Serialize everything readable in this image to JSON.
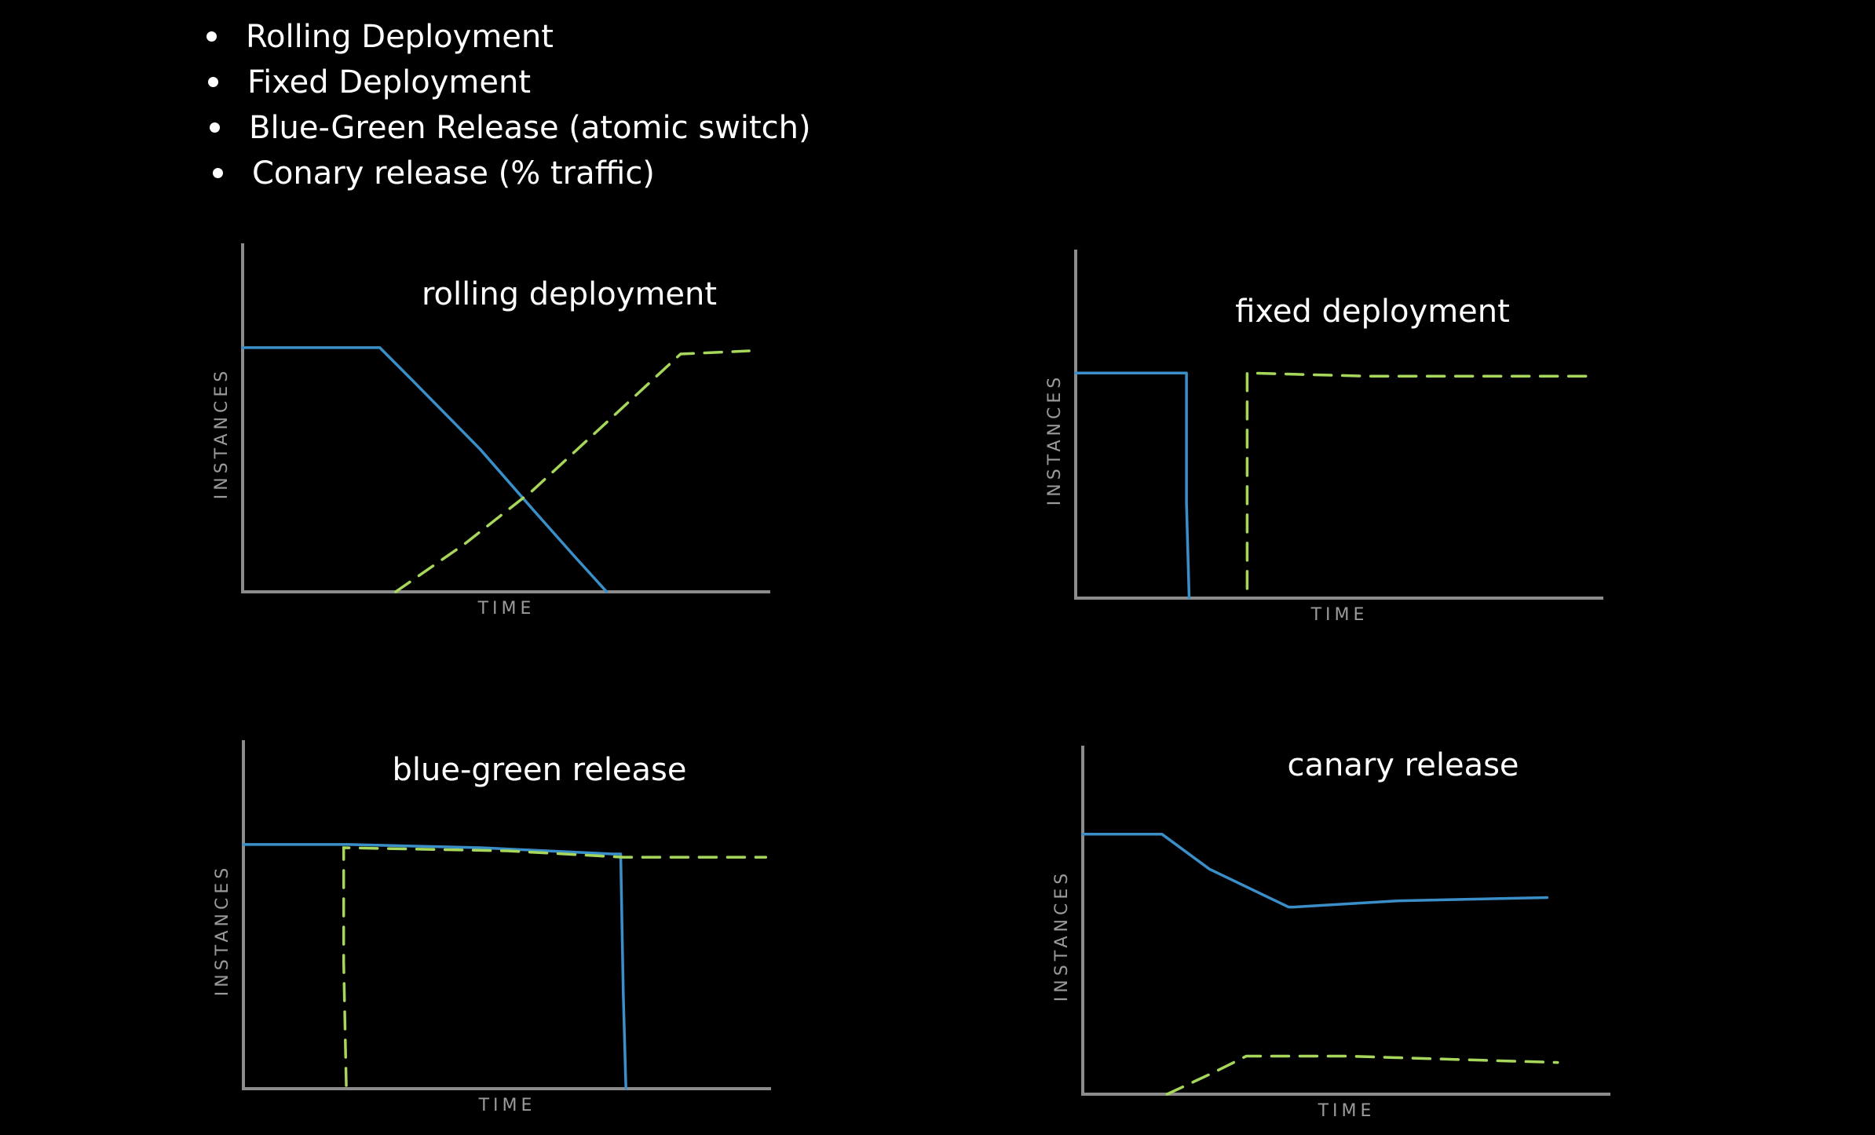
{
  "bullets": [
    "Rolling Deployment",
    "Fixed Deployment",
    "Blue-Green  Release  (atomic switch)",
    "Conary  release  (% traffic)"
  ],
  "colors": {
    "background": "#000000",
    "axis": "#8c8c8c",
    "old_version": "#3b8fc9",
    "new_version": "#a6d65a",
    "text": "#ffffff"
  },
  "chart_data": [
    {
      "type": "line",
      "title": "rolling deployment",
      "xlabel": "TIME",
      "ylabel": "INSTANCES",
      "grid": false,
      "xlim": [
        0,
        100
      ],
      "ylim": [
        0,
        100
      ],
      "series": [
        {
          "style": "solid",
          "color": "#3b8fc9",
          "points": [
            [
              0,
              77
            ],
            [
              26,
              77
            ],
            [
              32,
              67
            ],
            [
              45,
              45
            ],
            [
              55,
              26
            ],
            [
              63,
              11
            ],
            [
              69,
              0
            ]
          ]
        },
        {
          "style": "dashed",
          "color": "#a6d65a",
          "points": [
            [
              29,
              0
            ],
            [
              42,
              15
            ],
            [
              55,
              32
            ],
            [
              70,
              55
            ],
            [
              83,
              75
            ],
            [
              96,
              76
            ]
          ]
        }
      ]
    },
    {
      "type": "line",
      "title": "fixed deployment",
      "xlabel": "TIME",
      "ylabel": "INSTANCES",
      "grid": false,
      "xlim": [
        0,
        100
      ],
      "ylim": [
        0,
        100
      ],
      "series": [
        {
          "style": "solid",
          "color": "#3b8fc9",
          "points": [
            [
              0,
              71
            ],
            [
              21,
              71
            ],
            [
              21,
              30
            ],
            [
              21.5,
              0
            ]
          ]
        },
        {
          "style": "dashed",
          "color": "#a6d65a",
          "points": [
            [
              32.5,
              3
            ],
            [
              32.5,
              71
            ],
            [
              55,
              70
            ],
            [
              97,
              70
            ]
          ]
        }
      ]
    },
    {
      "type": "line",
      "title": "blue-green release",
      "xlabel": "TIME",
      "ylabel": "INSTANCES",
      "grid": false,
      "xlim": [
        0,
        100
      ],
      "ylim": [
        0,
        100
      ],
      "series": [
        {
          "style": "solid",
          "color": "#3b8fc9",
          "points": [
            [
              0,
              77
            ],
            [
              20,
              77
            ],
            [
              45,
              76
            ],
            [
              70,
              74
            ],
            [
              71.5,
              74
            ],
            [
              72,
              30
            ],
            [
              72.5,
              0
            ]
          ]
        },
        {
          "style": "dashed",
          "color": "#a6d65a",
          "points": [
            [
              19.5,
              1
            ],
            [
              19,
              40
            ],
            [
              19,
              76
            ],
            [
              50,
              75
            ],
            [
              72,
              73
            ],
            [
              99,
              73
            ]
          ]
        }
      ]
    },
    {
      "type": "line",
      "title": "canary release",
      "xlabel": "TIME",
      "ylabel": "INSTANCES",
      "grid": false,
      "xlim": [
        0,
        100
      ],
      "ylim": [
        0,
        100
      ],
      "series": [
        {
          "style": "solid",
          "color": "#3b8fc9",
          "points": [
            [
              0,
              82
            ],
            [
              15,
              82
            ],
            [
              24,
              71
            ],
            [
              39,
              59
            ],
            [
              40,
              59
            ],
            [
              60,
              61
            ],
            [
              88,
              62
            ]
          ]
        },
        {
          "style": "dashed",
          "color": "#a6d65a",
          "points": [
            [
              16,
              0
            ],
            [
              25,
              7
            ],
            [
              31,
              12
            ],
            [
              50,
              12
            ],
            [
              70,
              11
            ],
            [
              90,
              10
            ]
          ]
        }
      ]
    }
  ]
}
